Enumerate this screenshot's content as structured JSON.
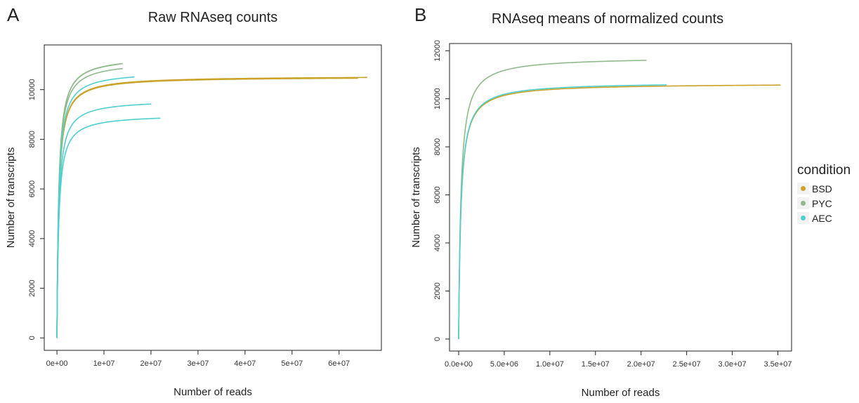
{
  "panels": {
    "a": {
      "letter": "A",
      "title": "Raw RNAseq counts"
    },
    "b": {
      "letter": "B",
      "title": "RNAseq means of normalized counts"
    }
  },
  "legend": {
    "title": "condition",
    "items": [
      {
        "label": "BSD",
        "color": "#c9a227"
      },
      {
        "label": "PYC",
        "color": "#8fba8a"
      },
      {
        "label": "AEC",
        "color": "#4fcfcf"
      }
    ]
  },
  "chart_data": [
    {
      "type": "line",
      "title": "Raw RNAseq counts",
      "xlabel": "Number of reads",
      "ylabel": "Number of transcripts",
      "xlim": [
        -2700000,
        69000000
      ],
      "ylim": [
        -500,
        11800
      ],
      "x_ticks": [
        0,
        10000000,
        20000000,
        30000000,
        40000000,
        50000000,
        60000000
      ],
      "x_tick_labels": [
        "0e+00",
        "1e+07",
        "2e+07",
        "3e+07",
        "4e+07",
        "5e+07",
        "6e+07"
      ],
      "y_ticks": [
        0,
        2000,
        4000,
        6000,
        8000,
        10000
      ],
      "y_tick_labels": [
        "0",
        "2000",
        "4000",
        "6000",
        "8000",
        "10000"
      ],
      "grid": false,
      "series": [
        {
          "condition": "BSD",
          "color": "#c9a227",
          "end_x": 66000000,
          "end_y": 10490
        },
        {
          "condition": "BSD",
          "color": "#c9a227",
          "end_x": 64000000,
          "end_y": 10460
        },
        {
          "condition": "PYC",
          "color": "#8fba8a",
          "end_x": 14000000,
          "end_y": 11050
        },
        {
          "condition": "PYC",
          "color": "#8fba8a",
          "end_x": 13500000,
          "end_y": 11030
        },
        {
          "condition": "PYC",
          "color": "#8fba8a",
          "end_x": 14000000,
          "end_y": 10850
        },
        {
          "condition": "AEC",
          "color": "#4fcfcf",
          "end_x": 16500000,
          "end_y": 10510
        },
        {
          "condition": "AEC",
          "color": "#4fcfcf",
          "end_x": 20000000,
          "end_y": 9420
        },
        {
          "condition": "AEC",
          "color": "#4fcfcf",
          "end_x": 22000000,
          "end_y": 8850
        }
      ]
    },
    {
      "type": "line",
      "title": "RNAseq means of normalized counts",
      "xlabel": "Number of reads",
      "ylabel": "Number of transcripts",
      "xlim": [
        -1000000,
        36500000
      ],
      "ylim": [
        -500,
        12300
      ],
      "x_ticks": [
        0,
        5000000,
        10000000,
        15000000,
        20000000,
        25000000,
        30000000,
        35000000
      ],
      "x_tick_labels": [
        "0.0e+00",
        "5.0e+06",
        "1.0e+07",
        "1.5e+07",
        "2.0e+07",
        "2.5e+07",
        "3.0e+07",
        "3.5e+07"
      ],
      "y_ticks": [
        0,
        2000,
        4000,
        6000,
        8000,
        10000,
        12000
      ],
      "y_tick_labels": [
        "0",
        "2000",
        "4000",
        "6000",
        "8000",
        "10000",
        "12000"
      ],
      "grid": false,
      "legend_position": "right",
      "series": [
        {
          "name": "BSD",
          "color": "#c9a227",
          "end_x": 35300000,
          "end_y": 10570
        },
        {
          "name": "PYC",
          "color": "#8fba8a",
          "end_x": 20600000,
          "end_y": 11600
        },
        {
          "name": "AEC",
          "color": "#4fcfcf",
          "end_x": 22800000,
          "end_y": 10580
        }
      ]
    }
  ]
}
